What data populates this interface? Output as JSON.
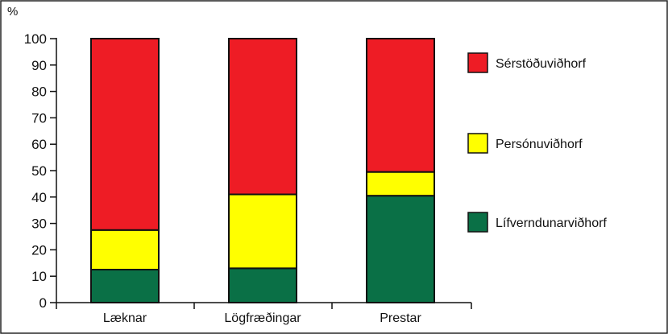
{
  "chart_data": {
    "type": "bar",
    "stacked": true,
    "ylabel": "%",
    "ylim": [
      0,
      100
    ],
    "yticks": [
      0,
      10,
      20,
      30,
      40,
      50,
      60,
      70,
      80,
      90,
      100
    ],
    "categories": [
      "Læknar",
      "Lögfræðingar",
      "Prestar"
    ],
    "series": [
      {
        "name": "Lífverndunarviðhorf",
        "color": "#0a7046",
        "values": [
          12.5,
          13,
          40.5
        ]
      },
      {
        "name": "Persónuviðhorf",
        "color": "#ffff00",
        "values": [
          15,
          28,
          9
        ]
      },
      {
        "name": "Sérstöðuviðhorf",
        "color": "#ee1c25",
        "values": [
          72.5,
          59,
          50.5
        ]
      }
    ],
    "legend_order": [
      "Sérstöðuviðhorf",
      "Persónuviðhorf",
      "Lífverndunarviðhorf"
    ],
    "legend_position": "right",
    "grid": false
  }
}
